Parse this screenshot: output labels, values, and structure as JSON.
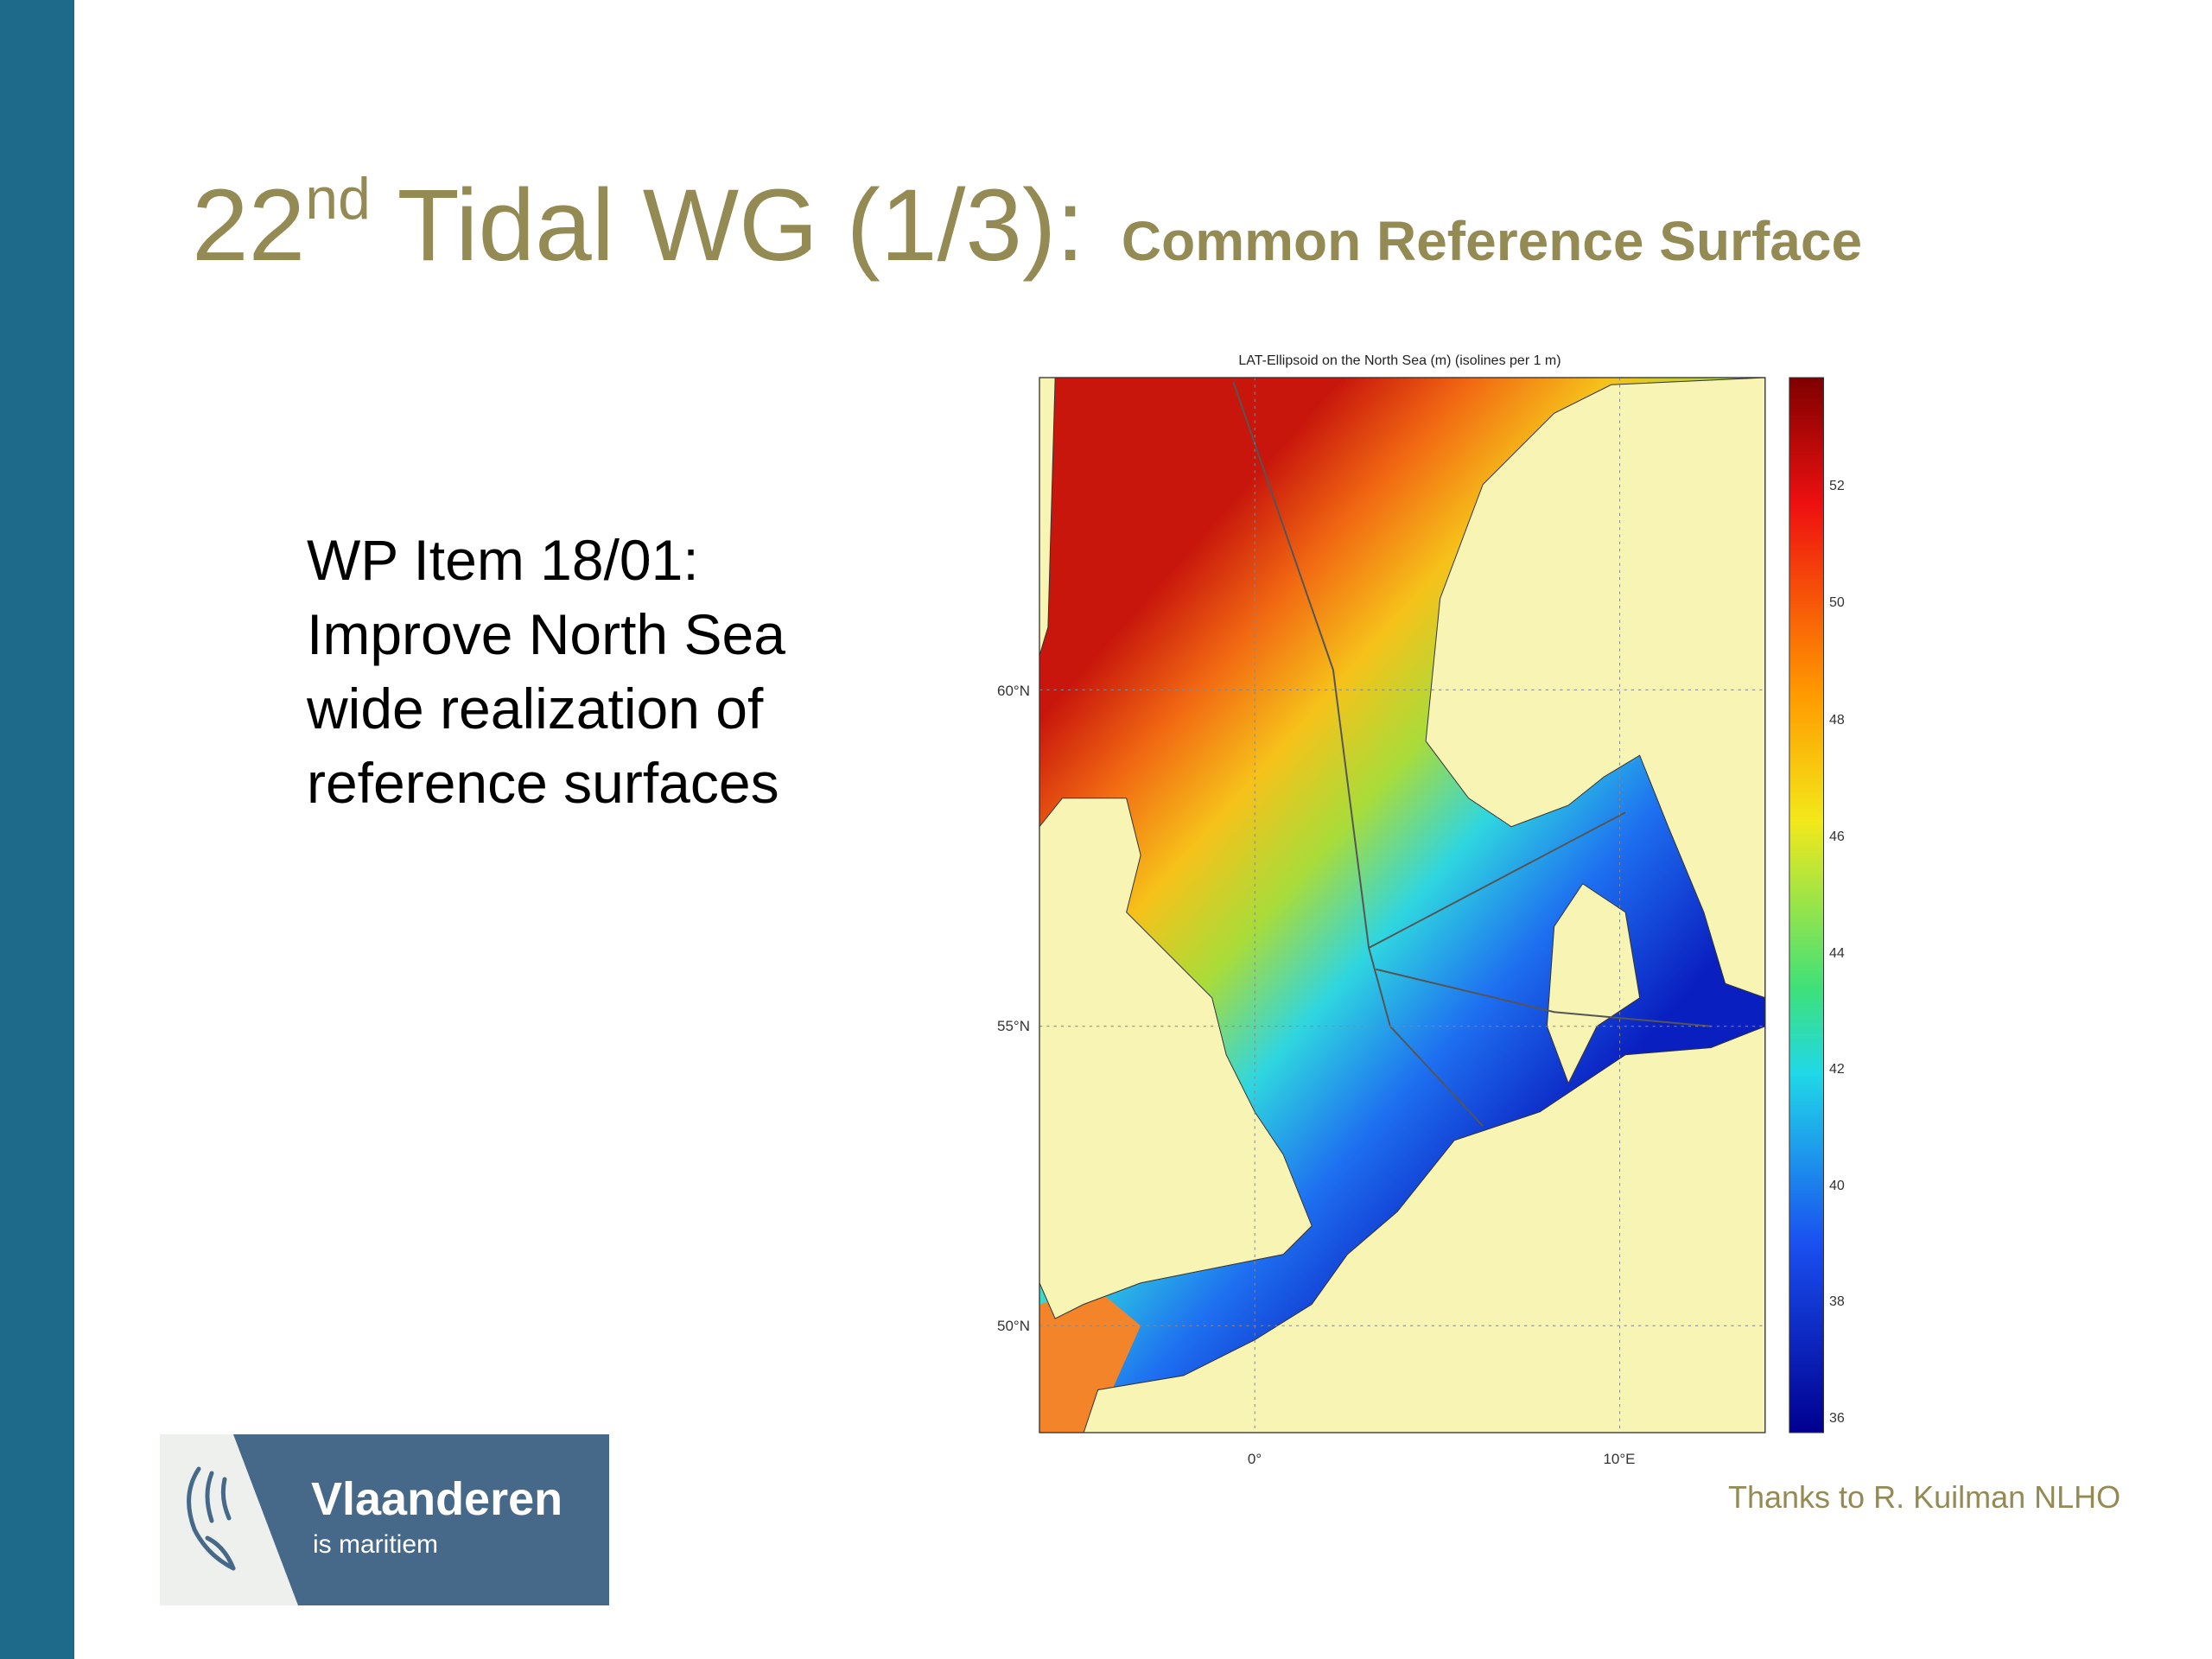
{
  "slide": {
    "title": {
      "main": "22",
      "superscript": "nd",
      "rest": "Tidal WG (1/3):",
      "subtitle": "Common Reference Surface"
    },
    "body": [
      "WP Item 18/01:",
      "Improve North Sea",
      "wide realization of",
      "reference surfaces"
    ],
    "figure": {
      "title": "LAT-Ellipsoid on the North Sea (m) (isolines per 1 m)",
      "lat_labels": [
        "60°N",
        "55°N",
        "50°N"
      ],
      "lon_labels": [
        "0°",
        "10°E"
      ],
      "colorbar_ticks": [
        52,
        50,
        48,
        46,
        44,
        42,
        40,
        38,
        36
      ]
    },
    "logo": {
      "name": "Vlaanderen",
      "tagline": "is maritiem"
    },
    "credit": "Thanks to R. Kuilman NLHO"
  }
}
